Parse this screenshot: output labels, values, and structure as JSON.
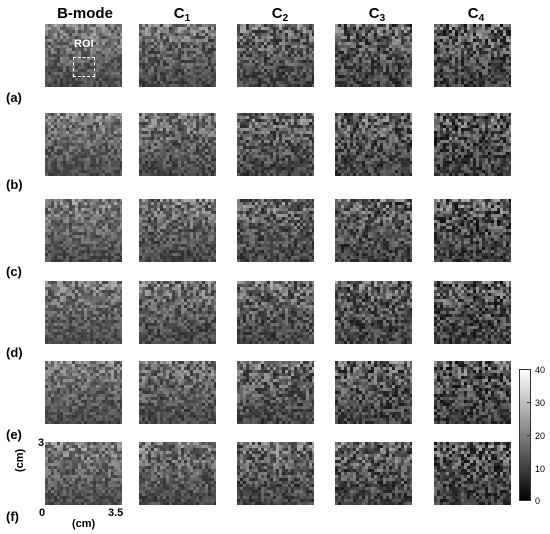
{
  "columns": [
    {
      "main": "B-mode",
      "sub": ""
    },
    {
      "main": "C",
      "sub": "1"
    },
    {
      "main": "C",
      "sub": "2"
    },
    {
      "main": "C",
      "sub": "3"
    },
    {
      "main": "C",
      "sub": "4"
    }
  ],
  "rows": [
    "(a)",
    "(b)",
    "(c)",
    "(d)",
    "(e)",
    "(f)"
  ],
  "roi_label": "ROI",
  "axes": {
    "x_min": "0",
    "x_max": "3.5",
    "x_unit": "(cm)",
    "y_max": "3",
    "y_unit": "(cm)"
  },
  "colorbar": {
    "ticks": [
      "40",
      "30",
      "20",
      "10",
      "0"
    ],
    "min": 0,
    "max": 40
  },
  "colors": {
    "background": "#ffffff",
    "roi_outline": "#ffffff"
  }
}
